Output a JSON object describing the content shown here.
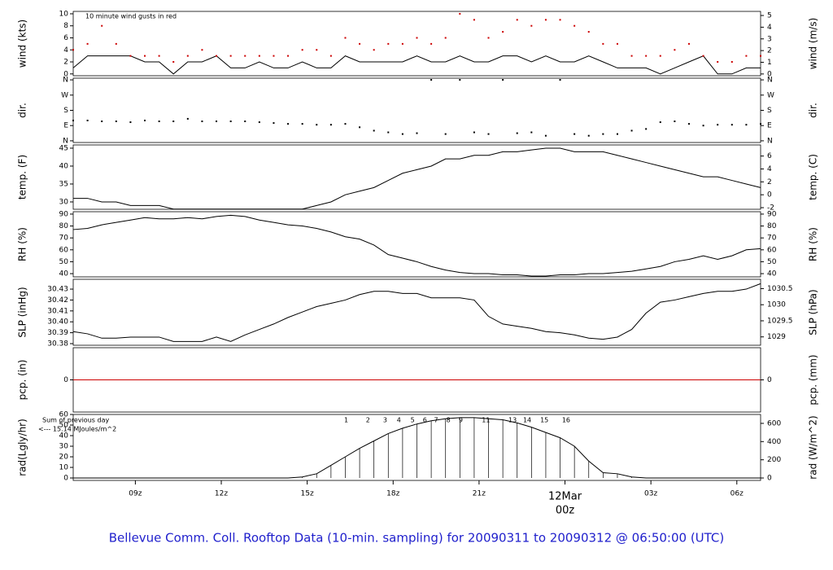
{
  "chart_data": {
    "title": "Bellevue Comm. Coll. Rooftop Data (10-min. sampling) for 20090311  to  20090312 @ 06:50:00  (UTC)",
    "x": [
      6.83,
      7.33,
      7.83,
      8.33,
      8.83,
      9.33,
      9.83,
      10.33,
      10.83,
      11.33,
      11.83,
      12.33,
      12.83,
      13.33,
      13.83,
      14.33,
      14.83,
      15.33,
      15.83,
      16.33,
      16.83,
      17.33,
      17.83,
      18.33,
      18.83,
      19.33,
      19.83,
      20.33,
      20.83,
      21.33,
      21.83,
      22.33,
      22.83,
      23.33,
      23.83,
      24.33,
      24.83,
      25.33,
      25.83,
      26.33,
      26.83,
      27.33,
      27.83,
      28.33,
      28.83,
      29.33,
      29.83,
      30.33,
      30.83
    ],
    "xlim": [
      6.83,
      30.83
    ],
    "xticks": [
      {
        "value": 9,
        "label": "09z"
      },
      {
        "value": 12,
        "label": "12z"
      },
      {
        "value": 15,
        "label": "15z"
      },
      {
        "value": 18,
        "label": "18z"
      },
      {
        "value": 21,
        "label": "21z"
      },
      {
        "value": 24,
        "label": "00z"
      },
      {
        "value": 27,
        "label": "03z"
      },
      {
        "value": 30,
        "label": "06z"
      }
    ],
    "day_marker": {
      "value": 24,
      "label": "12Mar",
      "color": "#cc0000"
    },
    "panels": [
      {
        "type": "line",
        "ylabel": "wind (kts)",
        "y2label": "wind (m/s)",
        "annotation": "10  minute wind gusts in red",
        "annotation_color": "#cc0000",
        "ylim": [
          -0.3,
          10.4
        ],
        "yticks": [
          0,
          2,
          4,
          6,
          8,
          10
        ],
        "y2lim": [
          -0.15,
          5.35
        ],
        "y2ticks": [
          0,
          1,
          2,
          3,
          4,
          5
        ],
        "series": [
          {
            "color": "#000000",
            "values": [
              1,
              3,
              3,
              3,
              3,
              2,
              2,
              0,
              2,
              2,
              3,
              1,
              1,
              2,
              1,
              1,
              2,
              1,
              1,
              3,
              2,
              2,
              2,
              2,
              3,
              2,
              2,
              3,
              2,
              2,
              3,
              3,
              2,
              3,
              2,
              2,
              3,
              2,
              1,
              1,
              1,
              0,
              1,
              2,
              3,
              0,
              0,
              1,
              1
            ]
          },
          {
            "type": "scatter",
            "color": "#cc0000",
            "values": [
              4,
              5,
              8,
              5,
              3,
              3,
              3,
              2,
              3,
              4,
              3,
              3,
              3,
              3,
              3,
              3,
              4,
              4,
              3,
              6,
              5,
              4,
              5,
              5,
              6,
              5,
              6,
              10,
              9,
              6,
              7,
              9,
              8,
              9,
              9,
              8,
              7,
              5,
              5,
              3,
              3,
              3,
              4,
              5,
              3,
              2,
              2,
              3,
              3
            ]
          }
        ]
      },
      {
        "type": "scatter",
        "ylabel": "dir.",
        "y2label": "dir.",
        "ylim": [
          -10,
          370
        ],
        "yticks": [
          {
            "value": 0,
            "label": "N"
          },
          {
            "value": 90,
            "label": "E"
          },
          {
            "value": 180,
            "label": "S"
          },
          {
            "value": 270,
            "label": "W"
          },
          {
            "value": 360,
            "label": "N"
          }
        ],
        "y2lim": [
          -10,
          370
        ],
        "y2ticks": [
          {
            "value": 0,
            "label": "N"
          },
          {
            "value": 90,
            "label": "E"
          },
          {
            "value": 180,
            "label": "S"
          },
          {
            "value": 270,
            "label": "W"
          },
          {
            "value": 360,
            "label": "N"
          }
        ],
        "series": [
          {
            "color": "#000000",
            "values": [
              120,
              120,
              115,
              115,
              110,
              120,
              115,
              115,
              130,
              115,
              115,
              115,
              115,
              110,
              105,
              100,
              100,
              95,
              95,
              100,
              80,
              60,
              50,
              40,
              45,
              360,
              40,
              360,
              50,
              40,
              360,
              45,
              50,
              30,
              360,
              40,
              30,
              40,
              40,
              60,
              70,
              110,
              115,
              100,
              90,
              95,
              95,
              95,
              100
            ]
          }
        ]
      },
      {
        "type": "line",
        "ylabel": "temp. (F)",
        "y2label": "temp. (C)",
        "ylim": [
          27.95,
          45.9
        ],
        "yticks": [
          30,
          35,
          40,
          45
        ],
        "y2lim": [
          -2.25,
          7.72
        ],
        "y2ticks": [
          -2,
          0,
          2,
          4,
          6
        ],
        "series": [
          {
            "color": "#000000",
            "values": [
              31,
              31,
              30,
              30,
              29,
              29,
              29,
              28,
              28,
              28,
              28,
              28,
              28,
              28,
              28,
              28,
              28,
              29,
              30,
              32,
              33,
              34,
              36,
              38,
              39,
              40,
              42,
              42,
              43,
              43,
              44,
              44,
              44.5,
              45,
              45,
              44,
              44,
              44,
              43,
              42,
              41,
              40,
              39,
              38,
              37,
              37,
              36,
              35,
              34
            ]
          }
        ]
      },
      {
        "type": "line",
        "ylabel": "RH (%)",
        "y2label": "RH (%)",
        "ylim": [
          37.3,
          92.0
        ],
        "yticks": [
          40,
          50,
          60,
          70,
          80,
          90
        ],
        "y2lim": [
          37.3,
          92.0
        ],
        "y2ticks": [
          40,
          50,
          60,
          70,
          80,
          90
        ],
        "series": [
          {
            "color": "#000000",
            "values": [
              77,
              78,
              81,
              83,
              85,
              87,
              86,
              86,
              87,
              86,
              88,
              89,
              88,
              85,
              83,
              81,
              80,
              78,
              75,
              71,
              69,
              64,
              56,
              53,
              50,
              46,
              43,
              41,
              40,
              40,
              39,
              39,
              38,
              38,
              39,
              39,
              40,
              40,
              41,
              42,
              44,
              46,
              50,
              52,
              55,
              52,
              55,
              60,
              61
            ]
          }
        ]
      },
      {
        "type": "line",
        "ylabel": "SLP (inHg)",
        "y2label": "SLP (hPa)",
        "ylim": [
          30.3785,
          30.439
        ],
        "yticks": [
          30.38,
          30.39,
          {
            "value": 30.4,
            "label": "30.40"
          },
          30.41,
          30.42,
          30.43
        ],
        "y2lim": [
          1028.74,
          1030.79
        ],
        "y2ticks": [
          1029,
          1029.5,
          1030,
          1030.5
        ],
        "series": [
          {
            "color": "#000000",
            "values": [
              30.391,
              30.389,
              30.385,
              30.385,
              30.386,
              30.386,
              30.386,
              30.382,
              30.382,
              30.382,
              30.386,
              30.382,
              30.388,
              30.393,
              30.398,
              30.404,
              30.409,
              30.414,
              30.417,
              30.42,
              30.425,
              30.428,
              30.428,
              30.426,
              30.426,
              30.422,
              30.422,
              30.422,
              30.42,
              30.405,
              30.398,
              30.396,
              30.394,
              30.391,
              30.39,
              30.388,
              30.385,
              30.384,
              30.386,
              30.393,
              30.408,
              30.418,
              30.42,
              30.423,
              30.426,
              30.428,
              30.428,
              30.43,
              30.435
            ]
          }
        ]
      },
      {
        "type": "line",
        "ylabel": "pcp. (in)",
        "y2label": "pcp. (mm)",
        "ylim": [
          -1,
          1
        ],
        "yticks": [
          0
        ],
        "y2lim": [
          -25.4,
          25.4
        ],
        "y2ticks": [
          0
        ],
        "series": [
          {
            "color": "#cc0000",
            "values": [
              0,
              0,
              0,
              0,
              0,
              0,
              0,
              0,
              0,
              0,
              0,
              0,
              0,
              0,
              0,
              0,
              0,
              0,
              0,
              0,
              0,
              0,
              0,
              0,
              0,
              0,
              0,
              0,
              0,
              0,
              0,
              0,
              0,
              0,
              0,
              0,
              0,
              0,
              0,
              0,
              0,
              0,
              0,
              0,
              0,
              0,
              0,
              0,
              0
            ]
          }
        ]
      },
      {
        "type": "area",
        "ylabel": "rad(Lgly/hr)",
        "y2label": "rad (W/m^2)",
        "ylim": [
          -2.3,
          60
        ],
        "yticks": [
          0,
          10,
          20,
          30,
          40,
          50,
          60
        ],
        "y2lim": [
          -26.7,
          697.8
        ],
        "y2ticks": [
          0,
          200,
          400,
          600
        ],
        "notes": [
          "Sum of previous day",
          "<--- 15.14 MJoules/m^2"
        ],
        "note_color": "#9900cc",
        "sun_hours": [
          {
            "value": 16.36,
            "label": "1"
          },
          {
            "value": 17.12,
            "label": "2"
          },
          {
            "value": 17.72,
            "label": "3"
          },
          {
            "value": 18.2,
            "label": "4"
          },
          {
            "value": 18.68,
            "label": "5"
          },
          {
            "value": 19.11,
            "label": "6"
          },
          {
            "value": 19.5,
            "label": "7"
          },
          {
            "value": 19.93,
            "label": "8"
          },
          {
            "value": 20.36,
            "label": "9"
          },
          {
            "value": 21.24,
            "label": "11"
          },
          {
            "value": 22.17,
            "label": "13"
          },
          {
            "value": 22.68,
            "label": "14"
          },
          {
            "value": 23.28,
            "label": "15"
          },
          {
            "value": 24.04,
            "label": "16"
          }
        ],
        "series": [
          {
            "color": "#000000",
            "values": [
              0,
              0,
              0,
              0,
              0,
              0,
              0,
              0,
              0,
              0,
              0,
              0,
              0,
              0,
              0,
              0,
              1,
              4,
              12,
              20,
              28,
              35,
              42,
              47,
              51,
              54,
              56,
              57,
              57,
              56,
              55,
              52,
              48,
              43,
              38,
              30,
              16,
              5,
              4,
              1,
              0,
              0,
              0,
              0,
              0,
              0,
              0,
              0,
              0
            ]
          }
        ]
      }
    ]
  }
}
